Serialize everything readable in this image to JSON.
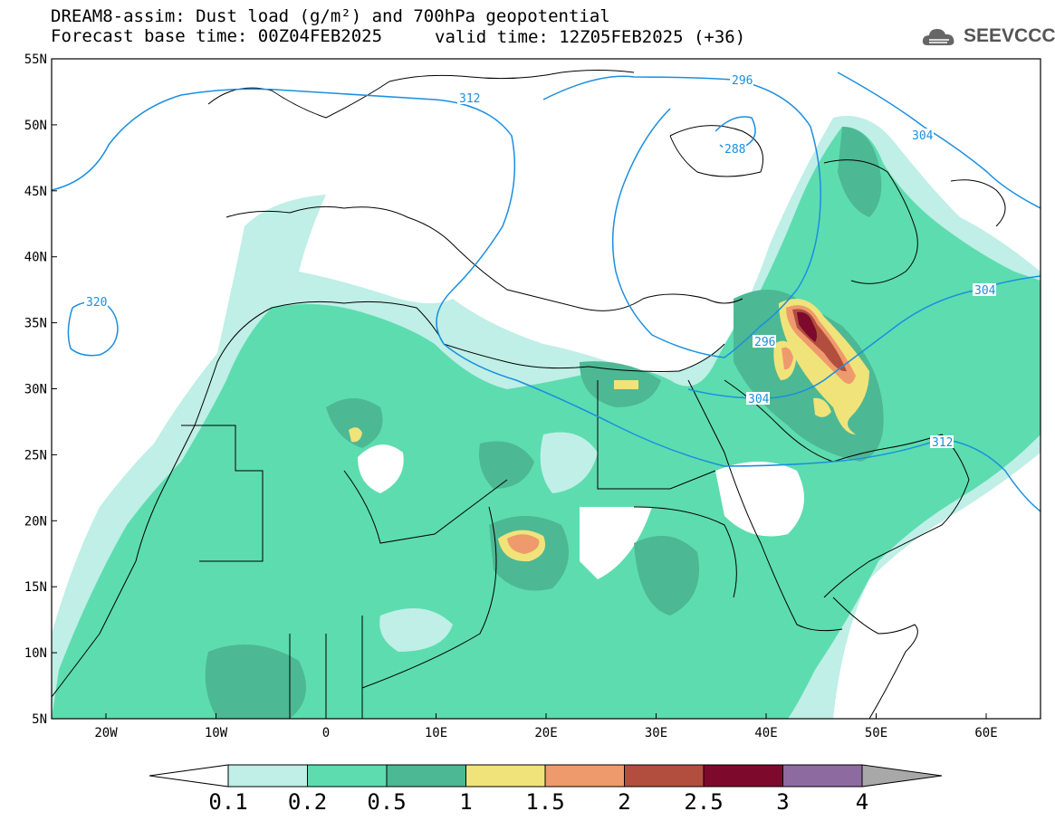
{
  "header": {
    "title_line1": "DREAM8-assim: Dust load (g/m²) and 700hPa geopotential",
    "base_time": "Forecast base time: 00Z04FEB2025",
    "valid_time": "valid time: 12Z05FEB2025 (+36)",
    "logo_text": "SEEVCCC"
  },
  "map": {
    "lat_labels": [
      "55N",
      "50N",
      "45N",
      "40N",
      "35N",
      "30N",
      "25N",
      "20N",
      "15N",
      "10N",
      "5N"
    ],
    "lon_labels": [
      "20W",
      "10W",
      "0",
      "10E",
      "20E",
      "30E",
      "40E",
      "50E",
      "60E"
    ],
    "contour_labels": [
      "312",
      "296",
      "288",
      "304",
      "320",
      "304",
      "296",
      "304",
      "312"
    ]
  },
  "colorbar": {
    "labels": [
      "0.1",
      "0.2",
      "0.5",
      "1",
      "1.5",
      "2",
      "2.5",
      "3",
      "4"
    ],
    "colors": [
      "#bfefe6",
      "#5ddcb0",
      "#4db894",
      "#f0e37a",
      "#ef9a6c",
      "#b24e3e",
      "#7d0a2c",
      "#8d6aa0",
      "#a8a8a8"
    ]
  }
}
